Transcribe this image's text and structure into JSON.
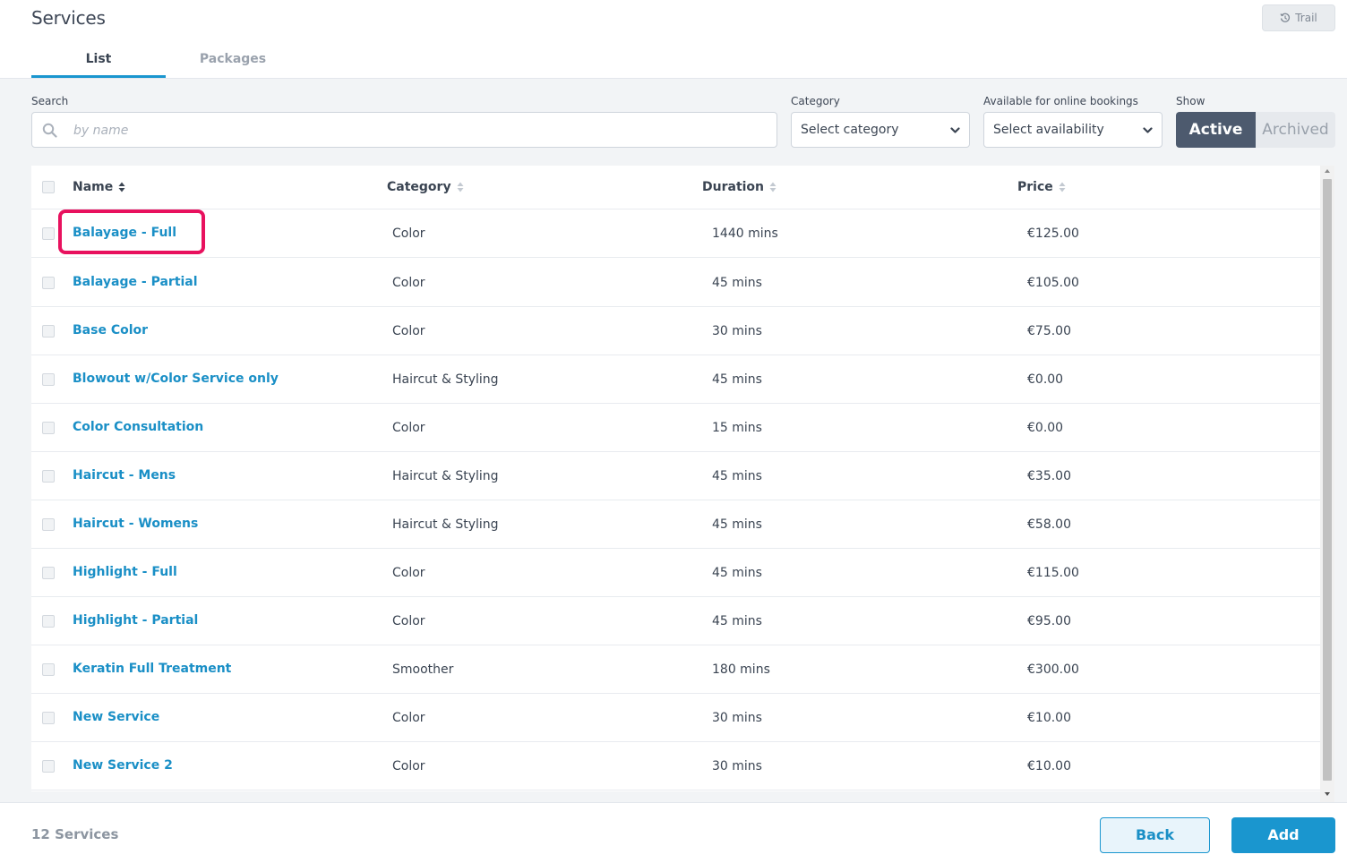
{
  "header": {
    "title": "Services",
    "trail_label": "Trail",
    "tabs": [
      {
        "label": "List",
        "active": true
      },
      {
        "label": "Packages",
        "active": false
      }
    ]
  },
  "filters": {
    "search_label": "Search",
    "search_placeholder": "by name",
    "search_value": "",
    "category_label": "Category",
    "category_value": "Select category",
    "availability_label": "Available for online bookings",
    "availability_value": "Select availability",
    "show_label": "Show",
    "show_options": [
      "Active",
      "Archived"
    ],
    "show_selected": "Active"
  },
  "table": {
    "columns": [
      "Name",
      "Category",
      "Duration",
      "Price"
    ],
    "rows": [
      {
        "name": "Balayage - Full",
        "category": "Color",
        "duration": "1440 mins",
        "price": "€125.00",
        "highlighted": true
      },
      {
        "name": "Balayage - Partial",
        "category": "Color",
        "duration": "45 mins",
        "price": "€105.00"
      },
      {
        "name": "Base Color",
        "category": "Color",
        "duration": "30 mins",
        "price": "€75.00"
      },
      {
        "name": "Blowout w/Color Service only",
        "category": "Haircut & Styling",
        "duration": "45 mins",
        "price": "€0.00"
      },
      {
        "name": "Color Consultation",
        "category": "Color",
        "duration": "15 mins",
        "price": "€0.00"
      },
      {
        "name": "Haircut - Mens",
        "category": "Haircut & Styling",
        "duration": "45 mins",
        "price": "€35.00"
      },
      {
        "name": "Haircut - Womens",
        "category": "Haircut & Styling",
        "duration": "45 mins",
        "price": "€58.00"
      },
      {
        "name": "Highlight - Full",
        "category": "Color",
        "duration": "45 mins",
        "price": "€115.00"
      },
      {
        "name": "Highlight - Partial",
        "category": "Color",
        "duration": "45 mins",
        "price": "€95.00"
      },
      {
        "name": "Keratin Full Treatment",
        "category": "Smoother",
        "duration": "180 mins",
        "price": "€300.00"
      },
      {
        "name": "New Service",
        "category": "Color",
        "duration": "30 mins",
        "price": "€10.00"
      },
      {
        "name": "New Service 2",
        "category": "Color",
        "duration": "30 mins",
        "price": "€10.00"
      }
    ]
  },
  "footer": {
    "count_label": "12 Services",
    "back_label": "Back",
    "add_label": "Add"
  },
  "colors": {
    "accent": "#1a96cf",
    "highlight": "#e8115e",
    "toggle_active": "#4d5a6e"
  },
  "icons": [
    "history-icon",
    "search-icon",
    "chevron-down-icon",
    "sort-icon"
  ]
}
